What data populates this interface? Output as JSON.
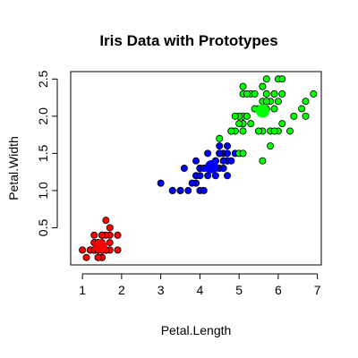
{
  "chart_data": {
    "type": "scatter",
    "title": "Iris Data with Prototypes",
    "xlabel": "Petal.Length",
    "ylabel": "Petal.Width",
    "xlim": [
      0.7,
      7.1
    ],
    "ylim": [
      0.0,
      2.6
    ],
    "x_ticks": [
      "1",
      "2",
      "3",
      "4",
      "5",
      "6",
      "7"
    ],
    "y_ticks": [
      "0.5",
      "1.0",
      "1.5",
      "2.0",
      "2.5"
    ],
    "grid": false,
    "legend": "none",
    "series": [
      {
        "color": "#ff0000",
        "points": [
          [
            1.4,
            0.2
          ],
          [
            1.4,
            0.2
          ],
          [
            1.3,
            0.2
          ],
          [
            1.5,
            0.2
          ],
          [
            1.4,
            0.2
          ],
          [
            1.7,
            0.4
          ],
          [
            1.4,
            0.3
          ],
          [
            1.5,
            0.2
          ],
          [
            1.4,
            0.2
          ],
          [
            1.5,
            0.1
          ],
          [
            1.5,
            0.2
          ],
          [
            1.6,
            0.2
          ],
          [
            1.4,
            0.1
          ],
          [
            1.1,
            0.1
          ],
          [
            1.2,
            0.2
          ],
          [
            1.5,
            0.4
          ],
          [
            1.3,
            0.4
          ],
          [
            1.4,
            0.3
          ],
          [
            1.7,
            0.3
          ],
          [
            1.5,
            0.3
          ],
          [
            1.7,
            0.2
          ],
          [
            1.5,
            0.4
          ],
          [
            1.0,
            0.2
          ],
          [
            1.7,
            0.5
          ],
          [
            1.9,
            0.2
          ],
          [
            1.6,
            0.2
          ],
          [
            1.6,
            0.4
          ],
          [
            1.5,
            0.2
          ],
          [
            1.4,
            0.2
          ],
          [
            1.6,
            0.2
          ],
          [
            1.6,
            0.2
          ],
          [
            1.5,
            0.4
          ],
          [
            1.5,
            0.1
          ],
          [
            1.4,
            0.2
          ],
          [
            1.5,
            0.2
          ],
          [
            1.2,
            0.2
          ],
          [
            1.3,
            0.2
          ],
          [
            1.4,
            0.1
          ],
          [
            1.3,
            0.2
          ],
          [
            1.5,
            0.2
          ],
          [
            1.3,
            0.3
          ],
          [
            1.3,
            0.3
          ],
          [
            1.3,
            0.2
          ],
          [
            1.6,
            0.6
          ],
          [
            1.9,
            0.4
          ],
          [
            1.4,
            0.3
          ],
          [
            1.6,
            0.2
          ],
          [
            1.4,
            0.2
          ],
          [
            1.5,
            0.2
          ],
          [
            1.4,
            0.2
          ]
        ],
        "prototype": [
          1.46,
          0.25
        ]
      },
      {
        "color": "#0000ff",
        "points": [
          [
            4.7,
            1.4
          ],
          [
            4.5,
            1.5
          ],
          [
            4.0,
            1.3
          ],
          [
            4.6,
            1.5
          ],
          [
            4.5,
            1.3
          ],
          [
            4.7,
            1.6
          ],
          [
            3.3,
            1.0
          ],
          [
            4.6,
            1.3
          ],
          [
            3.9,
            1.4
          ],
          [
            3.5,
            1.0
          ],
          [
            4.2,
            1.5
          ],
          [
            4.0,
            1.0
          ],
          [
            4.7,
            1.4
          ],
          [
            3.6,
            1.3
          ],
          [
            4.4,
            1.4
          ],
          [
            4.5,
            1.5
          ],
          [
            4.1,
            1.0
          ],
          [
            4.5,
            1.5
          ],
          [
            3.9,
            1.1
          ],
          [
            4.0,
            1.3
          ],
          [
            4.7,
            1.2
          ],
          [
            4.3,
            1.3
          ],
          [
            4.4,
            1.4
          ],
          [
            4.8,
            1.4
          ],
          [
            4.2,
            1.3
          ],
          [
            3.5,
            1.0
          ],
          [
            3.8,
            1.1
          ],
          [
            3.7,
            1.0
          ],
          [
            3.9,
            1.2
          ],
          [
            4.5,
            1.6
          ],
          [
            4.7,
            1.5
          ],
          [
            4.4,
            1.3
          ],
          [
            4.1,
            1.3
          ],
          [
            4.0,
            1.3
          ],
          [
            4.4,
            1.2
          ],
          [
            4.6,
            1.4
          ],
          [
            4.0,
            1.2
          ],
          [
            3.3,
            1.0
          ],
          [
            4.2,
            1.3
          ],
          [
            4.2,
            1.2
          ],
          [
            4.2,
            1.3
          ],
          [
            4.3,
            1.3
          ],
          [
            3.0,
            1.1
          ],
          [
            4.1,
            1.3
          ],
          [
            4.9,
            1.5
          ],
          [
            4.8,
            1.8
          ]
        ],
        "prototype": [
          4.3,
          1.32
        ]
      },
      {
        "color": "#00ff00",
        "points": [
          [
            6.0,
            2.5
          ],
          [
            5.1,
            1.9
          ],
          [
            5.9,
            2.1
          ],
          [
            5.6,
            1.8
          ],
          [
            5.8,
            2.2
          ],
          [
            6.6,
            2.1
          ],
          [
            4.5,
            1.7
          ],
          [
            6.3,
            1.8
          ],
          [
            5.8,
            1.8
          ],
          [
            6.1,
            2.5
          ],
          [
            5.1,
            2.0
          ],
          [
            5.3,
            1.9
          ],
          [
            5.5,
            2.1
          ],
          [
            5.0,
            2.0
          ],
          [
            5.1,
            2.4
          ],
          [
            5.3,
            2.3
          ],
          [
            5.5,
            1.8
          ],
          [
            6.7,
            2.2
          ],
          [
            6.9,
            2.3
          ],
          [
            5.0,
            1.5
          ],
          [
            5.7,
            2.3
          ],
          [
            4.9,
            2.0
          ],
          [
            6.7,
            2.0
          ],
          [
            4.9,
            1.8
          ],
          [
            5.7,
            2.1
          ],
          [
            6.0,
            1.8
          ],
          [
            4.8,
            1.8
          ],
          [
            4.9,
            1.8
          ],
          [
            5.6,
            2.1
          ],
          [
            5.8,
            1.6
          ],
          [
            6.1,
            1.9
          ],
          [
            6.4,
            2.0
          ],
          [
            5.6,
            2.2
          ],
          [
            5.1,
            1.5
          ],
          [
            5.6,
            1.4
          ],
          [
            6.1,
            2.3
          ],
          [
            5.6,
            2.4
          ],
          [
            5.5,
            1.8
          ],
          [
            4.8,
            1.8
          ],
          [
            5.4,
            2.1
          ],
          [
            5.6,
            2.4
          ],
          [
            5.1,
            2.3
          ],
          [
            5.1,
            1.9
          ],
          [
            5.9,
            2.3
          ],
          [
            5.7,
            2.5
          ],
          [
            5.2,
            2.3
          ],
          [
            5.0,
            1.9
          ],
          [
            5.2,
            2.0
          ],
          [
            5.4,
            2.3
          ],
          [
            5.1,
            1.8
          ],
          [
            5.9,
            2.3
          ],
          [
            6.0,
            2.2
          ],
          [
            5.9,
            1.8
          ],
          [
            5.7,
            2.2
          ]
        ],
        "prototype": [
          5.6,
          2.07
        ]
      }
    ]
  }
}
